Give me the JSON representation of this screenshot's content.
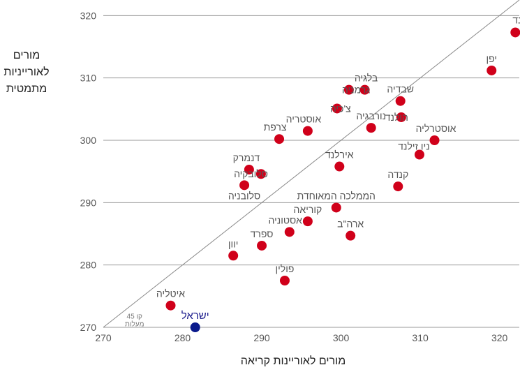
{
  "chart_data": {
    "type": "scatter",
    "xlabel": "מורים לאוריינות קריאה",
    "ylabel_lines": [
      "מורים",
      "לאורייניות",
      "מתמטית"
    ],
    "xlim": [
      270,
      322.5
    ],
    "ylim": [
      270,
      322.5
    ],
    "xticks": [
      270,
      280,
      290,
      300,
      310,
      320
    ],
    "yticks": [
      270,
      280,
      290,
      300,
      310,
      320
    ],
    "grid": "horizontal",
    "reference_line": {
      "label_lines": [
        "קו 45",
        "מעלות"
      ],
      "from": [
        270,
        270
      ],
      "to": [
        322.5,
        322.5
      ]
    },
    "colors": {
      "default": "#d0001a",
      "highlight": "#0a1a8c"
    },
    "points": [
      {
        "label": "פינלנד",
        "x": 322,
        "y": 317.3
      },
      {
        "label": "יפן",
        "x": 319,
        "y": 311.2
      },
      {
        "label": "בלגיה",
        "x": 303,
        "y": 308.1
      },
      {
        "label": "גרמניה",
        "x": 301,
        "y": 308.1
      },
      {
        "label": "שבדיה",
        "x": 307.5,
        "y": 306.3
      },
      {
        "label": "צ'כיה",
        "x": 299.5,
        "y": 305.1
      },
      {
        "label": "הולנד",
        "x": 307.6,
        "y": 303.7
      },
      {
        "label": "נורבגיה",
        "x": 303.8,
        "y": 302
      },
      {
        "label": "אוסטריה",
        "x": 295.8,
        "y": 301.5
      },
      {
        "label": "צרפת",
        "x": 292.2,
        "y": 300.2
      },
      {
        "label": "אוסטרליה",
        "x": 311.8,
        "y": 300
      },
      {
        "label": "ניו זילנד",
        "x": 309.9,
        "y": 297.7
      },
      {
        "label": "אירלנד",
        "x": 299.8,
        "y": 295.8
      },
      {
        "label": "דנמרק",
        "x": 288.4,
        "y": 295.3
      },
      {
        "label": "סלובקיה",
        "x": 289.9,
        "y": 294.6
      },
      {
        "label": "סלובניה",
        "x": 287.8,
        "y": 292.8
      },
      {
        "label": "קנדה",
        "x": 307.2,
        "y": 292.6
      },
      {
        "label": "הממלכה המאוחדת",
        "x": 299.4,
        "y": 289.2
      },
      {
        "label": "קוריאה",
        "x": 295.8,
        "y": 287
      },
      {
        "label": "אסטוניה",
        "x": 293.5,
        "y": 285.3
      },
      {
        "label": "ארה\"ב",
        "x": 301.2,
        "y": 284.7
      },
      {
        "label": "ספרד",
        "x": 290,
        "y": 283.1
      },
      {
        "label": "יוון",
        "x": 286.4,
        "y": 281.5
      },
      {
        "label": "פולין",
        "x": 292.9,
        "y": 277.5
      },
      {
        "label": "איטליה",
        "x": 278.5,
        "y": 273.5
      },
      {
        "label": "ישראל",
        "x": 281.6,
        "y": 270,
        "highlight": true
      }
    ]
  }
}
